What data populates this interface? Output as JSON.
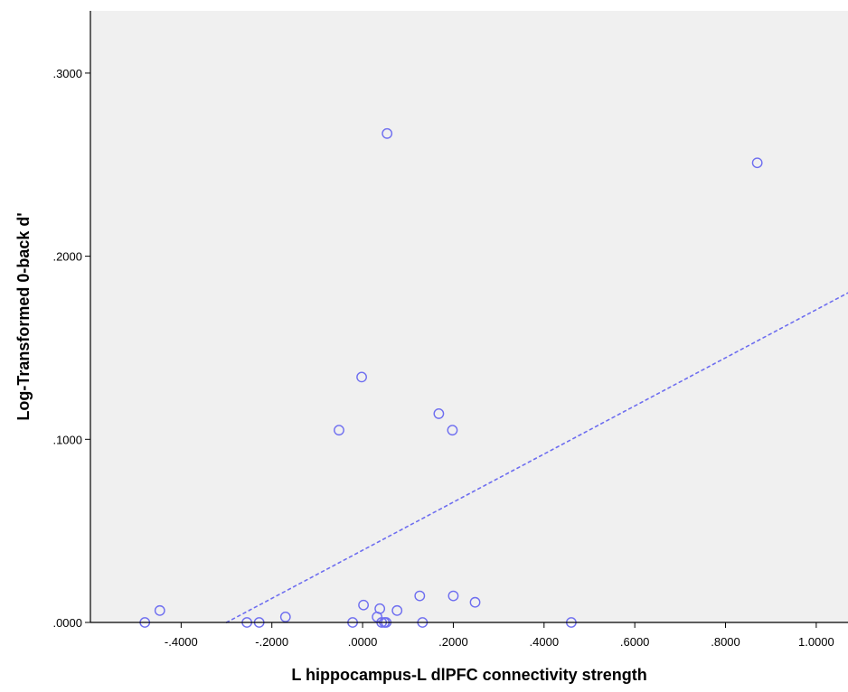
{
  "chart_data": {
    "type": "scatter",
    "title": "",
    "xlabel": "L hippocampus-L dlPFC connectivity strength",
    "ylabel": "Log-Transformed 0-back d'",
    "xlim": [
      -0.6,
      1.07
    ],
    "ylim": [
      0.0,
      0.334
    ],
    "x_ticks": [
      -0.4,
      -0.2,
      0.0,
      0.2,
      0.4,
      0.6,
      0.8,
      1.0
    ],
    "x_tick_labels": [
      "-.4000",
      "-.2000",
      ".0000",
      ".2000",
      ".4000",
      ".6000",
      ".8000",
      "1.0000"
    ],
    "y_ticks": [
      0.0,
      0.1,
      0.2,
      0.3
    ],
    "y_tick_labels": [
      ".0000",
      ".1000",
      ".2000",
      ".3000"
    ],
    "grid": false,
    "colors": {
      "plot_background": "#f0f0f0",
      "marker": "#6e6ef0",
      "fit_line": "#6e6ef0",
      "axis": "#000000"
    },
    "points": {
      "x": [
        -0.48,
        -0.447,
        -0.255,
        -0.228,
        -0.17,
        -0.052,
        -0.022,
        -0.002,
        0.002,
        0.032,
        0.038,
        0.042,
        0.048,
        0.052,
        0.054,
        0.076,
        0.126,
        0.132,
        0.168,
        0.198,
        0.2,
        0.248,
        0.46,
        0.87
      ],
      "y": [
        0.0,
        0.0065,
        0.0,
        0.0,
        0.003,
        0.105,
        0.0,
        0.134,
        0.0095,
        0.003,
        0.0075,
        0.0,
        0.0,
        0.0,
        0.267,
        0.0065,
        0.0145,
        0.0,
        0.114,
        0.105,
        0.0145,
        0.011,
        0.0,
        0.251
      ]
    },
    "fit_line": {
      "style": "dotted",
      "x": [
        -0.3,
        1.07
      ],
      "y": [
        0.0,
        0.18
      ]
    }
  }
}
